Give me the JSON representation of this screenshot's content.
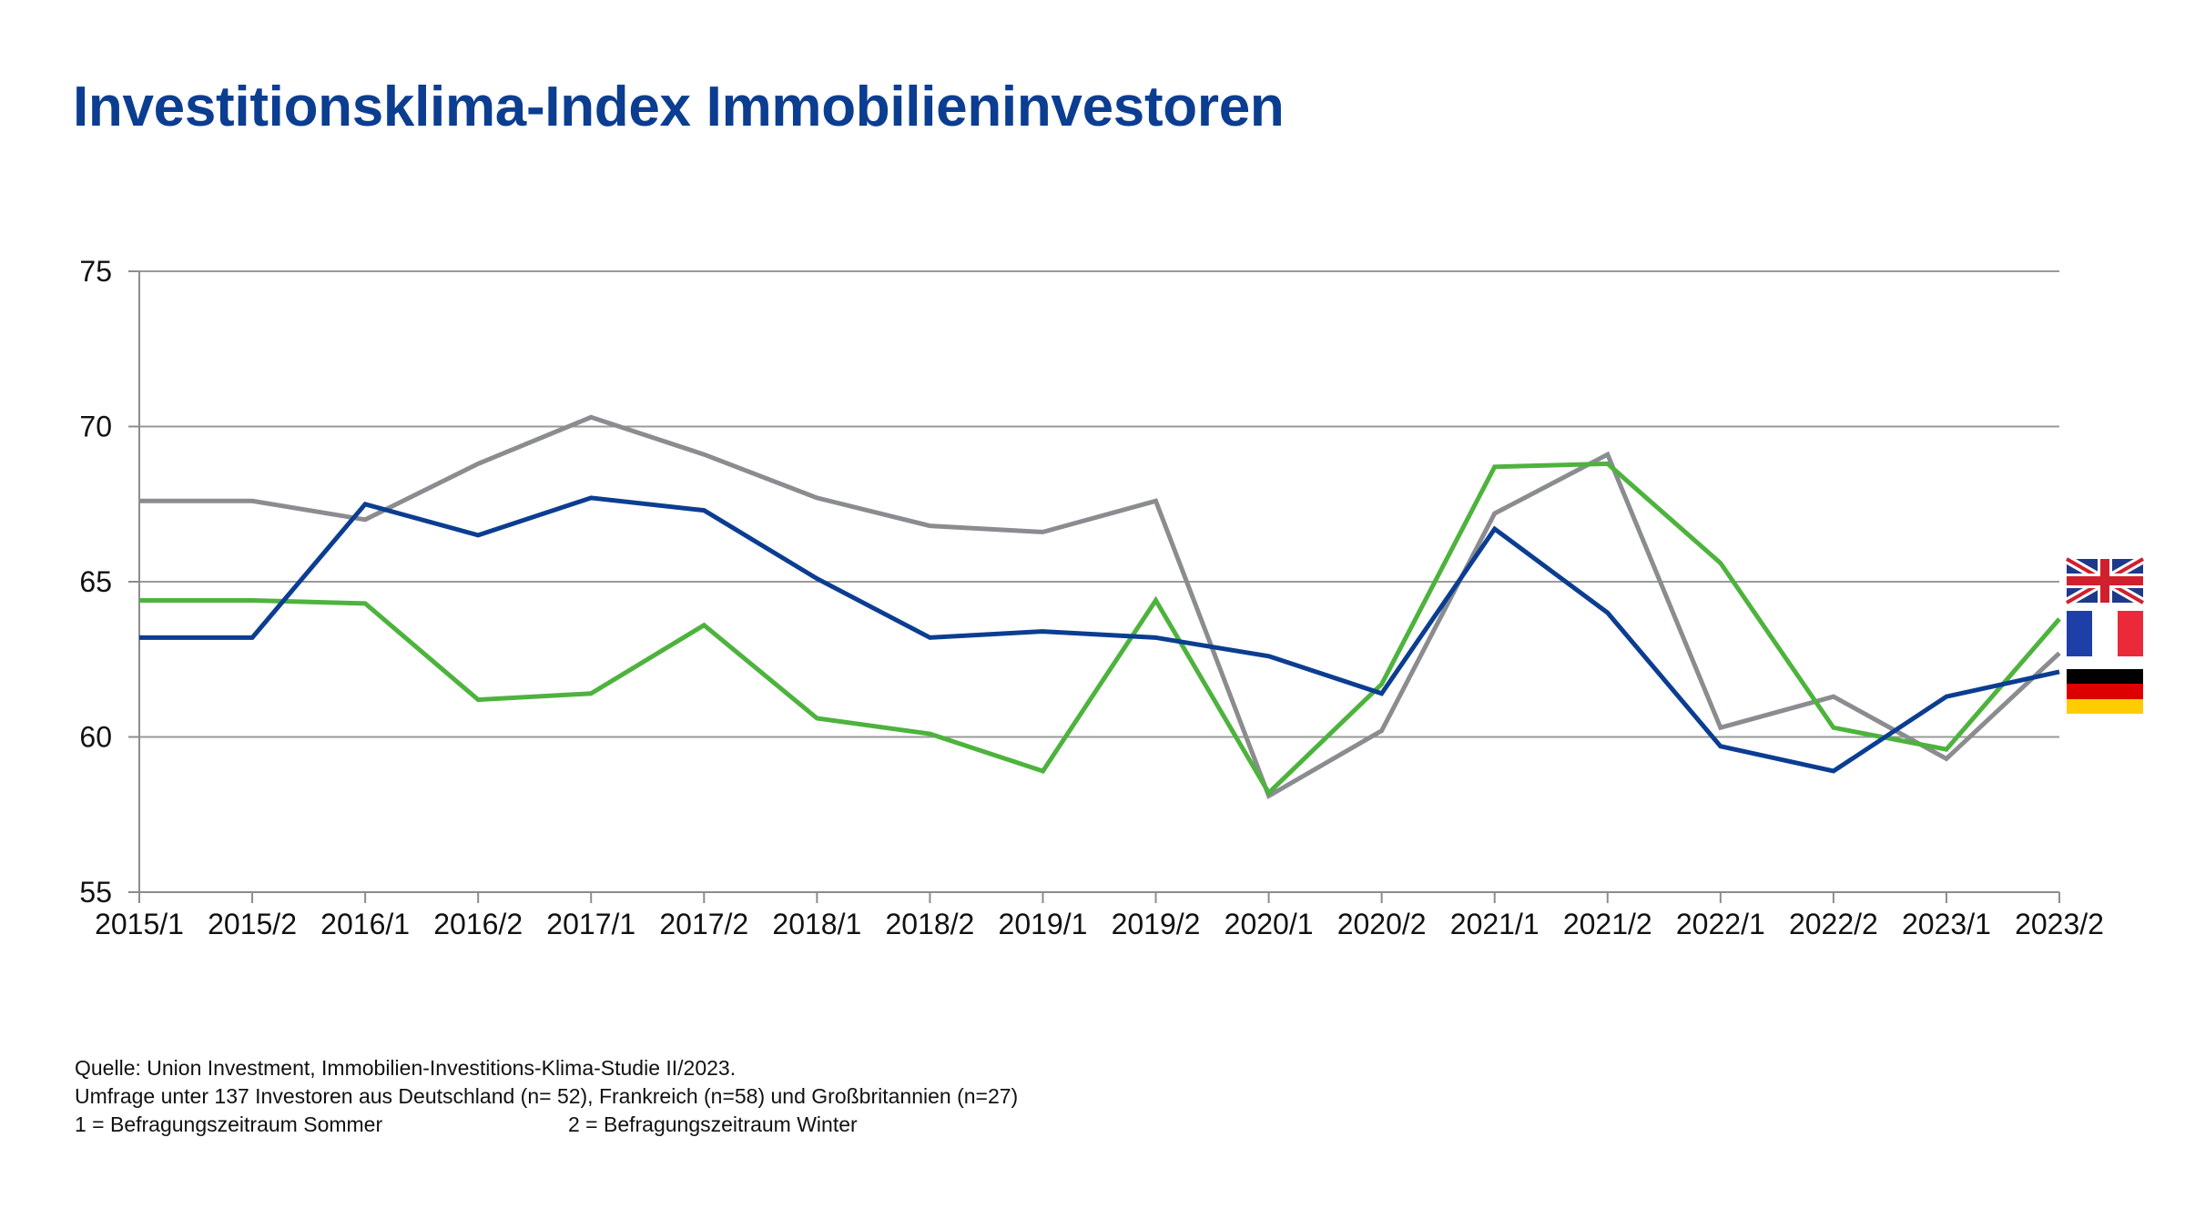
{
  "title": "Investitionsklima-Index Immobilieninvestoren",
  "footer": {
    "source": "Quelle: Union Investment, Immobilien-Investitions-Klima-Studie II/2023.",
    "survey": "Umfrage unter 137 Investoren aus Deutschland (n= 52), Frankreich (n=58) und Großbritannien (n=27)",
    "note1": "1 = Befragungszeitraum Sommer",
    "note2": "2 = Befragungszeitraum Winter"
  },
  "chart_data": {
    "type": "line",
    "title": "",
    "xlabel": "",
    "ylabel": "",
    "x": [
      "2015/1",
      "2015/2",
      "2016/1",
      "2016/2",
      "2017/1",
      "2017/2",
      "2018/1",
      "2018/2",
      "2019/1",
      "2019/2",
      "2020/1",
      "2020/2",
      "2021/1",
      "2021/2",
      "2022/1",
      "2022/2",
      "2023/1",
      "2023/2"
    ],
    "ylim": [
      55,
      75
    ],
    "yticks": [
      55,
      60,
      65,
      70,
      75
    ],
    "grid": "horizontal",
    "legend": "flags at right end of lines",
    "series": [
      {
        "flag": "germany",
        "color": "#0b3d91",
        "values": [
          63.2,
          63.2,
          67.5,
          66.5,
          67.7,
          67.3,
          65.1,
          63.2,
          63.4,
          63.2,
          62.6,
          61.4,
          66.7,
          64.0,
          59.7,
          58.9,
          61.3,
          62.1
        ]
      },
      {
        "flag": "france",
        "color": "#4db33d",
        "values": [
          64.4,
          64.4,
          64.3,
          61.2,
          61.4,
          63.6,
          60.6,
          60.1,
          58.9,
          64.4,
          58.2,
          61.7,
          68.7,
          68.8,
          65.6,
          60.3,
          59.6,
          63.8
        ]
      },
      {
        "flag": "united-kingdom",
        "color": "#8a8c90",
        "values": [
          67.6,
          67.6,
          67.0,
          68.8,
          70.3,
          69.1,
          67.7,
          66.8,
          66.6,
          67.6,
          58.1,
          60.2,
          67.2,
          69.1,
          60.3,
          61.3,
          59.3,
          62.7
        ]
      }
    ]
  }
}
